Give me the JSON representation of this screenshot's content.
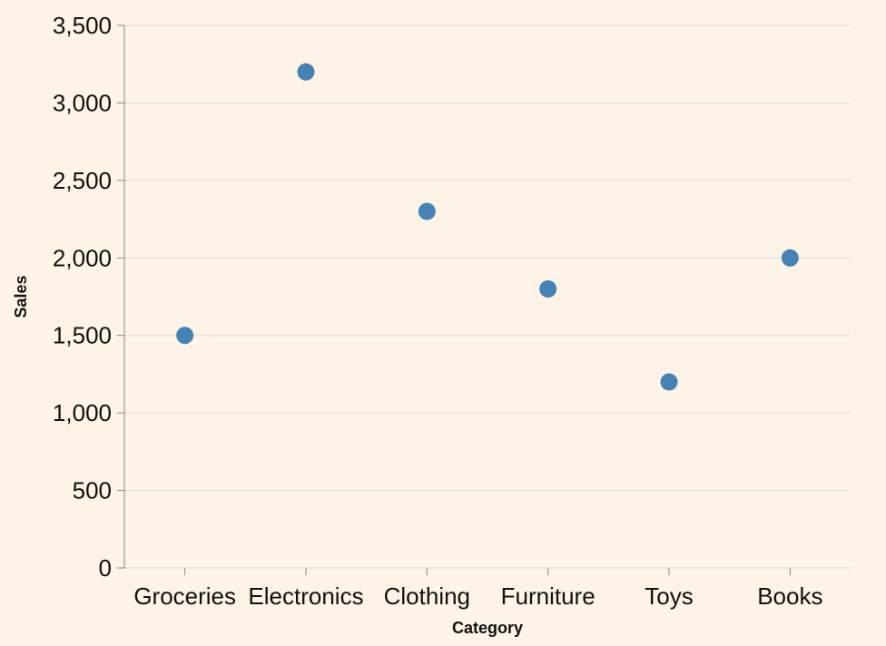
{
  "chart_data": {
    "type": "scatter",
    "title": "",
    "xlabel": "Category",
    "ylabel": "Sales",
    "categories": [
      "Groceries",
      "Electronics",
      "Clothing",
      "Furniture",
      "Toys",
      "Books"
    ],
    "values": [
      1500,
      3200,
      2300,
      1800,
      1200,
      2000
    ],
    "ylim": [
      0,
      3500
    ],
    "y_ticks": [
      0,
      500,
      1000,
      1500,
      2000,
      2500,
      3000,
      3500
    ],
    "y_tick_labels": [
      "0",
      "500",
      "1,000",
      "1,500",
      "2,000",
      "2,500",
      "3,000",
      "3,500"
    ],
    "grid": true,
    "point_color": "#4682b4",
    "background_color": "#fdf3e6"
  }
}
